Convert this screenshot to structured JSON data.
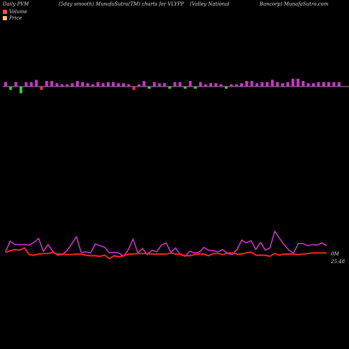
{
  "header": {
    "left": "Daily PVM",
    "center_left": "(5day smooth) MunafaSutra(TM) charts for VLYPP",
    "center_right": "(Valley National",
    "right": "Bancorp) MunafaSutra.com"
  },
  "legend": {
    "items": [
      {
        "label": "Volume",
        "color": "#ff4d4d"
      },
      {
        "label": "Price",
        "color": "#ffc07a"
      }
    ]
  },
  "chart_data": [
    {
      "type": "bar",
      "title": "Volume",
      "baseline_color": "#999999",
      "colors": {
        "up": "#cc33cc",
        "down": "#ff3333",
        "green": "#33cc33"
      },
      "values": [
        4,
        -3,
        4,
        -6,
        4,
        4,
        6,
        -3,
        5,
        5,
        3,
        2,
        2,
        3,
        5,
        4,
        3,
        2,
        4,
        3,
        4,
        4,
        3,
        3,
        2,
        -3,
        2,
        5,
        -2,
        4,
        3,
        3,
        -2,
        4,
        4,
        -2,
        5,
        -2,
        4,
        2,
        3,
        3,
        2,
        -2,
        2,
        2,
        3,
        5,
        5,
        3,
        4,
        4,
        6,
        4,
        3,
        4,
        7,
        7,
        5,
        3,
        3,
        4,
        4,
        4,
        4,
        4
      ],
      "bar_kinds": [
        "up",
        "green",
        "up",
        "green",
        "up",
        "up",
        "up",
        "down",
        "up",
        "up",
        "up",
        "up",
        "up",
        "up",
        "up",
        "up",
        "up",
        "up",
        "up",
        "up",
        "up",
        "up",
        "up",
        "up",
        "up",
        "down",
        "up",
        "up",
        "green",
        "up",
        "up",
        "up",
        "green",
        "up",
        "up",
        "green",
        "up",
        "green",
        "up",
        "up",
        "up",
        "up",
        "up",
        "green",
        "up",
        "up",
        "up",
        "up",
        "up",
        "up",
        "up",
        "up",
        "up",
        "up",
        "up",
        "up",
        "up",
        "up",
        "up",
        "up",
        "up",
        "up",
        "up",
        "up",
        "up",
        "up"
      ]
    },
    {
      "type": "line",
      "series": [
        {
          "name": "Volume",
          "color": "#cc33cc",
          "values": [
            50,
            68,
            62,
            62,
            62,
            61,
            66,
            73,
            50,
            62,
            50,
            43,
            44,
            51,
            63,
            76,
            48,
            49,
            47,
            63,
            60,
            57,
            47,
            48,
            47,
            41,
            53,
            72,
            47,
            55,
            44,
            52,
            49,
            61,
            65,
            48,
            56,
            44,
            41,
            50,
            47,
            48,
            57,
            52,
            51,
            49,
            53,
            46,
            44,
            53,
            70,
            65,
            69,
            53,
            66,
            52,
            56,
            86,
            73,
            62,
            52,
            47,
            64,
            64,
            60,
            62,
            61,
            65,
            60
          ]
        },
        {
          "name": "Price",
          "color": "#ff2222",
          "values": [
            48,
            51,
            53,
            52,
            56,
            44,
            43,
            45,
            46,
            46,
            48,
            45,
            45,
            44,
            44,
            45,
            45,
            43,
            42,
            42,
            41,
            43,
            37,
            42,
            40,
            42,
            45,
            45,
            46,
            46,
            46,
            45,
            45,
            45,
            45,
            47,
            45,
            45,
            42,
            42,
            44,
            45,
            45,
            42,
            46,
            46,
            44,
            47,
            47,
            45,
            45,
            47,
            49,
            43,
            43,
            43,
            41,
            46,
            43,
            45,
            45,
            45,
            44,
            45,
            46,
            47,
            47,
            47,
            47
          ]
        }
      ],
      "right_labels": {
        "volume": "0M",
        "price": "25.48"
      }
    }
  ]
}
